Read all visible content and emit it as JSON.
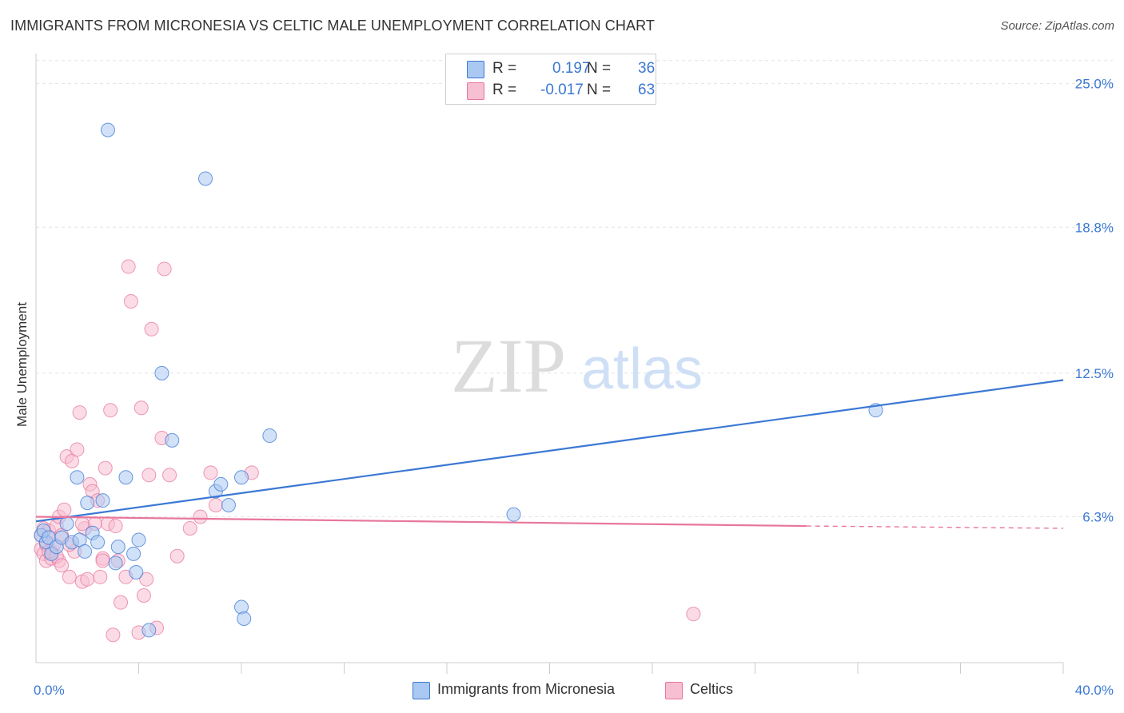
{
  "header": {
    "title": "IMMIGRANTS FROM MICRONESIA VS CELTIC MALE UNEMPLOYMENT CORRELATION CHART",
    "source": "Source: ZipAtlas.com"
  },
  "watermark": {
    "zip": "ZIP",
    "atlas": "atlas"
  },
  "legend": {
    "rows": [
      {
        "r_label": "R =",
        "r_value": "0.197",
        "n_label": "N =",
        "n_value": "36",
        "color": "#8fb8ee"
      },
      {
        "r_label": "R =",
        "r_value": "-0.017",
        "n_label": "N =",
        "n_value": "63",
        "color": "#f4a9c2"
      }
    ]
  },
  "chart_data": {
    "type": "scatter",
    "title": "IMMIGRANTS FROM MICRONESIA VS CELTIC MALE UNEMPLOYMENT CORRELATION CHART",
    "xlabel": "",
    "ylabel": "Male Unemployment",
    "xlim": [
      0,
      40
    ],
    "ylim": [
      0,
      26.3
    ],
    "x_tick_labels": [
      "0.0%",
      "40.0%"
    ],
    "y_ticks": [
      6.3,
      12.5,
      18.8,
      25.0
    ],
    "y_tick_labels": [
      "6.3%",
      "12.5%",
      "18.8%",
      "25.0%"
    ],
    "grid": true,
    "legend_position": "top-center",
    "colors": {
      "blue": "#3b78d4",
      "pink": "#e8769c",
      "blue_fill": "#a9c9f3",
      "pink_fill": "#f7bfd2"
    },
    "series": [
      {
        "name": "Immigrants from Micronesia",
        "color": "#3b78d4",
        "trend": {
          "x": [
            0,
            40
          ],
          "y": [
            6.1,
            12.2
          ]
        },
        "points": [
          [
            0.2,
            5.5
          ],
          [
            0.4,
            5.2
          ],
          [
            0.3,
            5.7
          ],
          [
            0.5,
            5.4
          ],
          [
            0.6,
            4.7
          ],
          [
            0.8,
            5.0
          ],
          [
            1.0,
            5.4
          ],
          [
            1.2,
            6.0
          ],
          [
            1.4,
            5.2
          ],
          [
            1.6,
            8.0
          ],
          [
            1.7,
            5.3
          ],
          [
            1.9,
            4.8
          ],
          [
            2.0,
            6.9
          ],
          [
            2.2,
            5.6
          ],
          [
            2.4,
            5.2
          ],
          [
            2.6,
            7.0
          ],
          [
            2.8,
            23.0
          ],
          [
            3.1,
            4.3
          ],
          [
            3.2,
            5.0
          ],
          [
            3.5,
            8.0
          ],
          [
            3.8,
            4.7
          ],
          [
            3.9,
            3.9
          ],
          [
            4.0,
            5.3
          ],
          [
            4.4,
            1.4
          ],
          [
            4.9,
            12.5
          ],
          [
            5.3,
            9.6
          ],
          [
            6.6,
            20.9
          ],
          [
            7.0,
            7.4
          ],
          [
            7.2,
            7.7
          ],
          [
            7.5,
            6.8
          ],
          [
            8.0,
            8.0
          ],
          [
            8.0,
            2.4
          ],
          [
            8.1,
            1.9
          ],
          [
            9.1,
            9.8
          ],
          [
            18.6,
            6.4
          ],
          [
            32.7,
            10.9
          ]
        ]
      },
      {
        "name": "Celtics",
        "color": "#e8769c",
        "trend": {
          "x": [
            0,
            30
          ],
          "y": [
            6.3,
            5.9
          ],
          "dashed_to": 40,
          "dashed_y": 5.8
        },
        "points": [
          [
            0.2,
            4.9
          ],
          [
            0.3,
            4.7
          ],
          [
            0.3,
            5.8
          ],
          [
            0.4,
            5.1
          ],
          [
            0.4,
            4.4
          ],
          [
            0.5,
            5.7
          ],
          [
            0.6,
            4.8
          ],
          [
            0.6,
            4.5
          ],
          [
            0.7,
            5.1
          ],
          [
            0.8,
            5.9
          ],
          [
            0.9,
            4.4
          ],
          [
            0.9,
            6.3
          ],
          [
            1.0,
            5.5
          ],
          [
            1.1,
            6.6
          ],
          [
            1.2,
            8.9
          ],
          [
            1.3,
            3.7
          ],
          [
            1.4,
            8.7
          ],
          [
            1.5,
            4.8
          ],
          [
            1.6,
            9.2
          ],
          [
            1.7,
            10.8
          ],
          [
            1.8,
            3.5
          ],
          [
            1.9,
            5.8
          ],
          [
            2.0,
            3.6
          ],
          [
            2.1,
            7.7
          ],
          [
            2.2,
            7.4
          ],
          [
            2.3,
            6.0
          ],
          [
            2.4,
            7.0
          ],
          [
            2.5,
            3.7
          ],
          [
            2.6,
            4.5
          ],
          [
            2.6,
            4.4
          ],
          [
            2.7,
            8.4
          ],
          [
            2.8,
            6.0
          ],
          [
            2.9,
            10.9
          ],
          [
            3.0,
            1.2
          ],
          [
            3.1,
            5.9
          ],
          [
            3.2,
            4.4
          ],
          [
            3.3,
            2.6
          ],
          [
            3.5,
            3.7
          ],
          [
            3.6,
            17.1
          ],
          [
            3.7,
            15.6
          ],
          [
            4.0,
            1.3
          ],
          [
            4.1,
            11.0
          ],
          [
            4.2,
            2.9
          ],
          [
            4.3,
            3.6
          ],
          [
            4.4,
            8.1
          ],
          [
            4.5,
            14.4
          ],
          [
            4.7,
            1.5
          ],
          [
            4.9,
            9.7
          ],
          [
            5.0,
            17.0
          ],
          [
            5.2,
            8.1
          ],
          [
            5.5,
            4.6
          ],
          [
            6.0,
            5.8
          ],
          [
            6.4,
            6.3
          ],
          [
            6.8,
            8.2
          ],
          [
            7.0,
            6.8
          ],
          [
            8.4,
            8.2
          ],
          [
            25.6,
            2.1
          ],
          [
            0.2,
            5.5
          ],
          [
            0.5,
            4.8
          ],
          [
            0.8,
            4.6
          ],
          [
            1.0,
            4.2
          ],
          [
            1.3,
            5.1
          ],
          [
            1.8,
            6.0
          ]
        ]
      }
    ]
  }
}
